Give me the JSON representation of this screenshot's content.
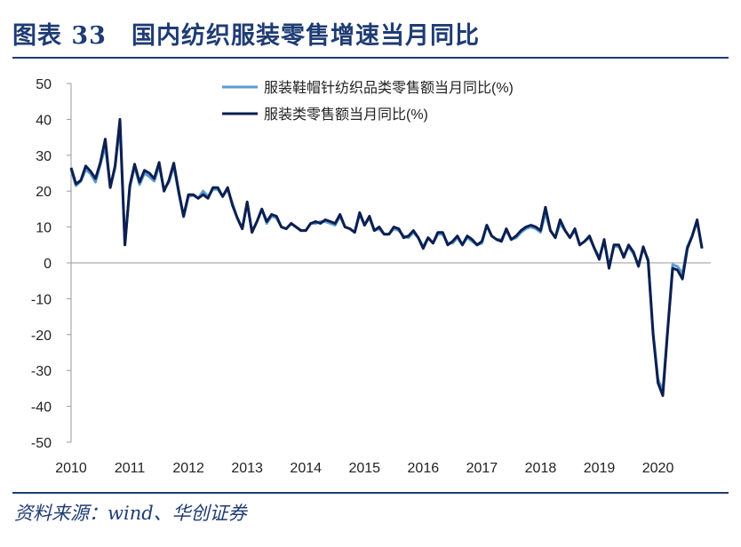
{
  "header": {
    "title": "图表 33　国内纺织服装零售增速当月同比"
  },
  "footer": {
    "source": "资料来源：wind、华创证券"
  },
  "colors": {
    "title_blue": "#1f3c73",
    "series_light": "#5b9bd5",
    "series_dark": "#0d1f4f"
  },
  "chart_data": {
    "type": "line",
    "ylim": [
      -50,
      50
    ],
    "yticks": [
      -50,
      -40,
      -30,
      -20,
      -10,
      0,
      10,
      20,
      30,
      40,
      50
    ],
    "xlim": [
      2010,
      2020.9
    ],
    "xticks": [
      "2010",
      "2011",
      "2012",
      "2013",
      "2014",
      "2015",
      "2016",
      "2017",
      "2018",
      "2019",
      "2020"
    ],
    "grid": false,
    "legend": "top-center",
    "series": [
      {
        "name": "服装鞋帽针纺织品类零售额当月同比(%)",
        "color": "#5b9bd5",
        "points": [
          [
            2010.0,
            26.0
          ],
          [
            2010.083,
            21.5
          ],
          [
            2010.167,
            22.8
          ],
          [
            2010.25,
            26.0
          ],
          [
            2010.333,
            24.8
          ],
          [
            2010.417,
            22.5
          ],
          [
            2010.5,
            27.5
          ],
          [
            2010.583,
            32.5
          ],
          [
            2010.667,
            21.0
          ],
          [
            2010.75,
            26.5
          ],
          [
            2010.833,
            38.5
          ],
          [
            2010.917,
            5.0
          ],
          [
            2011.0,
            21.0
          ],
          [
            2011.083,
            26.8
          ],
          [
            2011.167,
            21.8
          ],
          [
            2011.25,
            25.0
          ],
          [
            2011.333,
            24.0
          ],
          [
            2011.417,
            22.8
          ],
          [
            2011.5,
            27.0
          ],
          [
            2011.583,
            20.5
          ],
          [
            2011.667,
            22.5
          ],
          [
            2011.75,
            27.0
          ],
          [
            2011.833,
            19.5
          ],
          [
            2011.917,
            12.8
          ],
          [
            2012.0,
            18.5
          ],
          [
            2012.083,
            18.8
          ],
          [
            2012.167,
            18.0
          ],
          [
            2012.25,
            20.0
          ],
          [
            2012.333,
            18.5
          ],
          [
            2012.417,
            20.5
          ],
          [
            2012.5,
            20.5
          ],
          [
            2012.583,
            18.5
          ],
          [
            2012.667,
            20.5
          ],
          [
            2012.75,
            16.5
          ],
          [
            2012.833,
            12.5
          ],
          [
            2012.917,
            9.5
          ],
          [
            2013.0,
            16.5
          ],
          [
            2013.083,
            8.8
          ],
          [
            2013.167,
            11.5
          ],
          [
            2013.25,
            15.0
          ],
          [
            2013.333,
            11.0
          ],
          [
            2013.417,
            13.0
          ],
          [
            2013.5,
            12.5
          ],
          [
            2013.583,
            10.0
          ],
          [
            2013.667,
            9.5
          ],
          [
            2013.75,
            11.0
          ],
          [
            2013.833,
            10.0
          ],
          [
            2013.917,
            9.0
          ],
          [
            2014.0,
            9.0
          ],
          [
            2014.083,
            11.0
          ],
          [
            2014.167,
            11.0
          ],
          [
            2014.25,
            11.5
          ],
          [
            2014.333,
            11.5
          ],
          [
            2014.417,
            11.0
          ],
          [
            2014.5,
            10.5
          ],
          [
            2014.583,
            13.0
          ],
          [
            2014.667,
            10.0
          ],
          [
            2014.75,
            9.5
          ],
          [
            2014.833,
            8.5
          ],
          [
            2014.917,
            13.5
          ],
          [
            2015.0,
            10.5
          ],
          [
            2015.083,
            12.5
          ],
          [
            2015.167,
            9.0
          ],
          [
            2015.25,
            9.5
          ],
          [
            2015.333,
            8.0
          ],
          [
            2015.417,
            8.0
          ],
          [
            2015.5,
            9.5
          ],
          [
            2015.583,
            9.0
          ],
          [
            2015.667,
            7.5
          ],
          [
            2015.75,
            7.0
          ],
          [
            2015.833,
            8.5
          ],
          [
            2015.917,
            7.0
          ],
          [
            2016.0,
            4.5
          ],
          [
            2016.083,
            7.0
          ],
          [
            2016.167,
            5.5
          ],
          [
            2016.25,
            8.0
          ],
          [
            2016.333,
            8.0
          ],
          [
            2016.417,
            5.5
          ],
          [
            2016.5,
            5.5
          ],
          [
            2016.583,
            7.0
          ],
          [
            2016.667,
            5.0
          ],
          [
            2016.75,
            7.0
          ],
          [
            2016.833,
            6.0
          ],
          [
            2016.917,
            5.0
          ],
          [
            2017.0,
            5.5
          ],
          [
            2017.083,
            10.5
          ],
          [
            2017.167,
            7.5
          ],
          [
            2017.25,
            6.5
          ],
          [
            2017.333,
            6.5
          ],
          [
            2017.417,
            9.0
          ],
          [
            2017.5,
            6.5
          ],
          [
            2017.583,
            7.0
          ],
          [
            2017.667,
            8.5
          ],
          [
            2017.75,
            9.5
          ],
          [
            2017.833,
            10.0
          ],
          [
            2017.917,
            9.5
          ],
          [
            2018.0,
            8.5
          ],
          [
            2018.083,
            14.0
          ],
          [
            2018.167,
            9.0
          ],
          [
            2018.25,
            7.0
          ],
          [
            2018.333,
            11.0
          ],
          [
            2018.417,
            9.0
          ],
          [
            2018.5,
            7.0
          ],
          [
            2018.583,
            9.0
          ],
          [
            2018.667,
            5.0
          ],
          [
            2018.75,
            6.0
          ],
          [
            2018.833,
            7.0
          ],
          [
            2018.917,
            4.0
          ],
          [
            2019.0,
            1.5
          ],
          [
            2019.083,
            6.0
          ],
          [
            2019.167,
            -1.0
          ],
          [
            2019.25,
            4.5
          ],
          [
            2019.333,
            4.5
          ],
          [
            2019.417,
            2.0
          ],
          [
            2019.5,
            4.5
          ],
          [
            2019.583,
            2.5
          ],
          [
            2019.667,
            -0.5
          ],
          [
            2019.75,
            4.0
          ],
          [
            2019.833,
            1.0
          ],
          [
            2019.917,
            -19.5
          ],
          [
            2020.0,
            -32.5
          ],
          [
            2020.083,
            -35.5
          ],
          [
            2020.167,
            -18.0
          ],
          [
            2020.25,
            -0.5
          ],
          [
            2020.333,
            -1.0
          ],
          [
            2020.417,
            -3.0
          ],
          [
            2020.5,
            4.5
          ],
          [
            2020.583,
            7.5
          ],
          [
            2020.667,
            11.5
          ],
          [
            2020.75,
            4.0
          ]
        ]
      },
      {
        "name": "服装类零售额当月同比(%)",
        "color": "#0d1f4f",
        "points": [
          [
            2010.0,
            26.5
          ],
          [
            2010.083,
            22.0
          ],
          [
            2010.167,
            23.0
          ],
          [
            2010.25,
            27.0
          ],
          [
            2010.333,
            25.5
          ],
          [
            2010.417,
            23.5
          ],
          [
            2010.5,
            28.0
          ],
          [
            2010.583,
            34.5
          ],
          [
            2010.667,
            21.0
          ],
          [
            2010.75,
            27.0
          ],
          [
            2010.833,
            40.0
          ],
          [
            2010.917,
            5.0
          ],
          [
            2011.0,
            21.5
          ],
          [
            2011.083,
            27.5
          ],
          [
            2011.167,
            22.5
          ],
          [
            2011.25,
            25.8
          ],
          [
            2011.333,
            25.0
          ],
          [
            2011.417,
            23.5
          ],
          [
            2011.5,
            28.0
          ],
          [
            2011.583,
            20.0
          ],
          [
            2011.667,
            23.0
          ],
          [
            2011.75,
            27.8
          ],
          [
            2011.833,
            20.0
          ],
          [
            2011.917,
            13.0
          ],
          [
            2012.0,
            19.0
          ],
          [
            2012.083,
            19.0
          ],
          [
            2012.167,
            18.0
          ],
          [
            2012.25,
            19.0
          ],
          [
            2012.333,
            18.0
          ],
          [
            2012.417,
            21.0
          ],
          [
            2012.5,
            21.0
          ],
          [
            2012.583,
            18.5
          ],
          [
            2012.667,
            21.0
          ],
          [
            2012.75,
            16.0
          ],
          [
            2012.833,
            12.5
          ],
          [
            2012.917,
            9.5
          ],
          [
            2013.0,
            17.0
          ],
          [
            2013.083,
            8.5
          ],
          [
            2013.167,
            11.5
          ],
          [
            2013.25,
            15.0
          ],
          [
            2013.333,
            11.5
          ],
          [
            2013.417,
            13.5
          ],
          [
            2013.5,
            13.0
          ],
          [
            2013.583,
            10.0
          ],
          [
            2013.667,
            9.5
          ],
          [
            2013.75,
            11.0
          ],
          [
            2013.833,
            10.0
          ],
          [
            2013.917,
            9.0
          ],
          [
            2014.0,
            9.0
          ],
          [
            2014.083,
            11.0
          ],
          [
            2014.167,
            11.5
          ],
          [
            2014.25,
            11.0
          ],
          [
            2014.333,
            12.0
          ],
          [
            2014.417,
            11.5
          ],
          [
            2014.5,
            11.0
          ],
          [
            2014.583,
            13.5
          ],
          [
            2014.667,
            10.0
          ],
          [
            2014.75,
            9.5
          ],
          [
            2014.833,
            8.5
          ],
          [
            2014.917,
            14.0
          ],
          [
            2015.0,
            10.5
          ],
          [
            2015.083,
            13.0
          ],
          [
            2015.167,
            9.0
          ],
          [
            2015.25,
            10.0
          ],
          [
            2015.333,
            8.0
          ],
          [
            2015.417,
            8.0
          ],
          [
            2015.5,
            10.0
          ],
          [
            2015.583,
            9.5
          ],
          [
            2015.667,
            7.0
          ],
          [
            2015.75,
            7.5
          ],
          [
            2015.833,
            9.0
          ],
          [
            2015.917,
            7.0
          ],
          [
            2016.0,
            4.0
          ],
          [
            2016.083,
            7.0
          ],
          [
            2016.167,
            5.5
          ],
          [
            2016.25,
            8.5
          ],
          [
            2016.333,
            8.5
          ],
          [
            2016.417,
            5.0
          ],
          [
            2016.5,
            6.0
          ],
          [
            2016.583,
            7.5
          ],
          [
            2016.667,
            5.0
          ],
          [
            2016.75,
            7.5
          ],
          [
            2016.833,
            6.5
          ],
          [
            2016.917,
            5.0
          ],
          [
            2017.0,
            6.0
          ],
          [
            2017.083,
            10.5
          ],
          [
            2017.167,
            7.5
          ],
          [
            2017.25,
            6.5
          ],
          [
            2017.333,
            6.0
          ],
          [
            2017.417,
            9.5
          ],
          [
            2017.5,
            6.5
          ],
          [
            2017.583,
            7.5
          ],
          [
            2017.667,
            9.0
          ],
          [
            2017.75,
            10.0
          ],
          [
            2017.833,
            10.5
          ],
          [
            2017.917,
            10.0
          ],
          [
            2018.0,
            9.0
          ],
          [
            2018.083,
            15.5
          ],
          [
            2018.167,
            9.0
          ],
          [
            2018.25,
            7.0
          ],
          [
            2018.333,
            12.0
          ],
          [
            2018.417,
            9.0
          ],
          [
            2018.5,
            7.0
          ],
          [
            2018.583,
            9.5
          ],
          [
            2018.667,
            5.0
          ],
          [
            2018.75,
            6.0
          ],
          [
            2018.833,
            7.5
          ],
          [
            2018.917,
            4.0
          ],
          [
            2019.0,
            1.0
          ],
          [
            2019.083,
            6.5
          ],
          [
            2019.167,
            -1.5
          ],
          [
            2019.25,
            5.0
          ],
          [
            2019.333,
            5.0
          ],
          [
            2019.417,
            1.5
          ],
          [
            2019.5,
            5.0
          ],
          [
            2019.583,
            3.0
          ],
          [
            2019.667,
            -1.0
          ],
          [
            2019.75,
            4.5
          ],
          [
            2019.833,
            0.5
          ],
          [
            2019.917,
            -20.0
          ],
          [
            2020.0,
            -33.5
          ],
          [
            2020.083,
            -37.0
          ],
          [
            2020.167,
            -18.5
          ],
          [
            2020.25,
            -1.5
          ],
          [
            2020.333,
            -2.0
          ],
          [
            2020.417,
            -4.5
          ],
          [
            2020.5,
            4.0
          ],
          [
            2020.583,
            7.5
          ],
          [
            2020.667,
            12.0
          ],
          [
            2020.75,
            4.0
          ]
        ]
      }
    ]
  }
}
